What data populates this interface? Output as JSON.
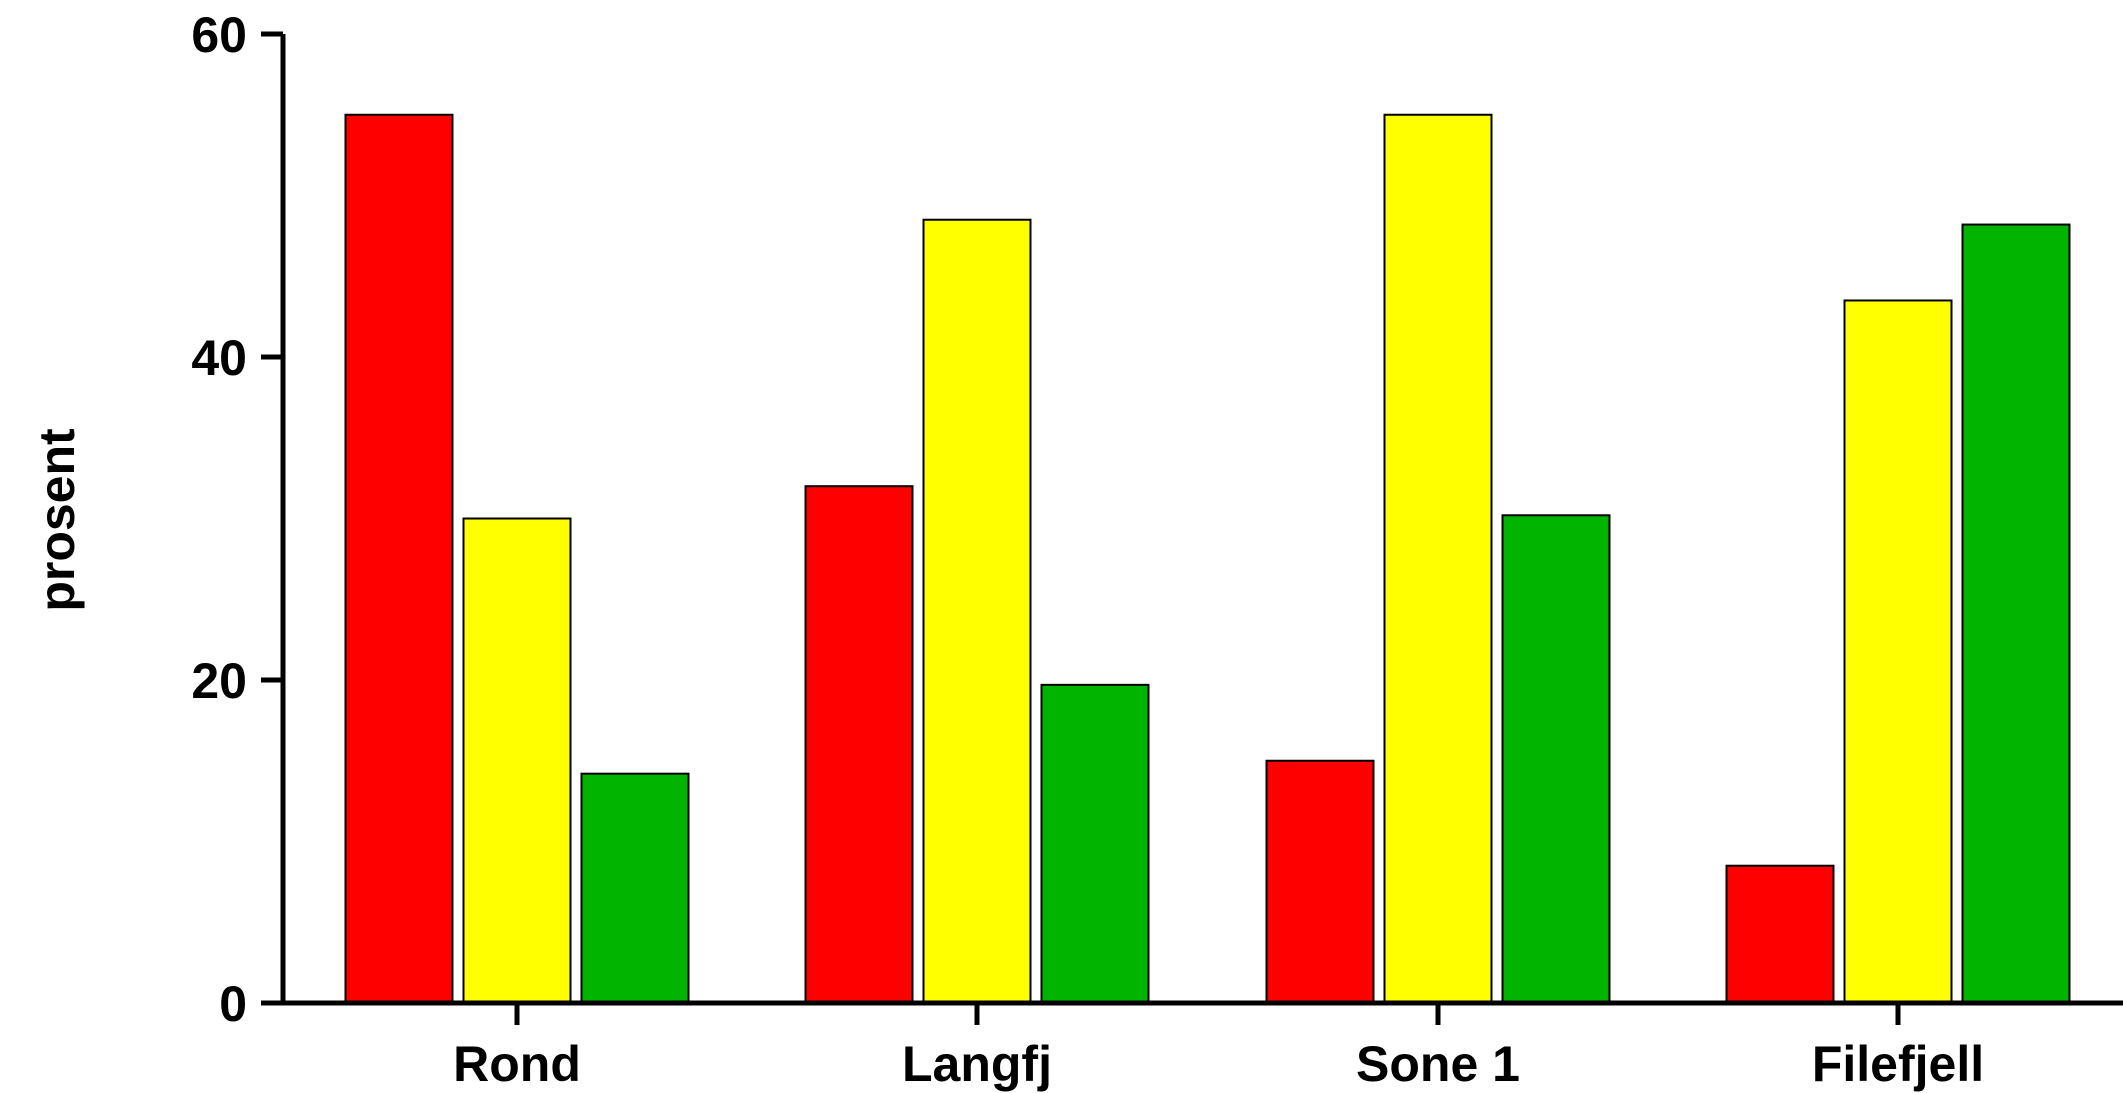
{
  "chart_data": {
    "type": "bar",
    "title": "",
    "xlabel": "",
    "ylabel": "prosent",
    "ylim": [
      0,
      60
    ],
    "yticks": [
      "0",
      "20",
      "40",
      "60"
    ],
    "grid": false,
    "legend": "none",
    "categories": [
      "Rond",
      "Langfj",
      "Sone 1",
      "Filefjell"
    ],
    "series": [
      {
        "color": "#ff0000",
        "values": [
          55,
          32,
          15,
          8.5
        ]
      },
      {
        "color": "#ffff00",
        "values": [
          30,
          48.5,
          55,
          43.5
        ]
      },
      {
        "color": "#00b400",
        "values": [
          14.2,
          19.7,
          30.2,
          48.2
        ]
      }
    ]
  }
}
